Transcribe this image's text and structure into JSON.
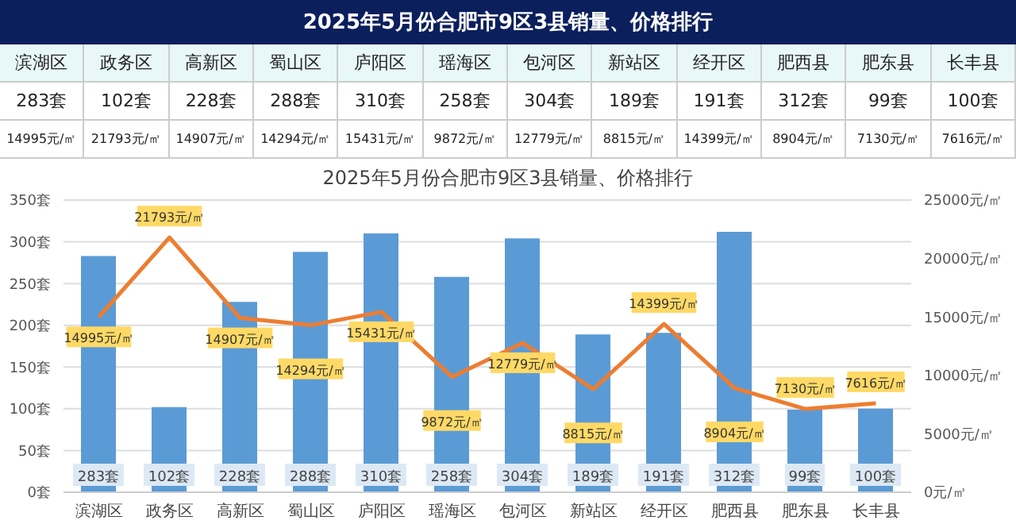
{
  "chart_data": {
    "type": "bar",
    "title": "2025年5月份合肥市9区3县销量、价格排行",
    "subtitle": "2025年5月份合肥市9区3县销量、价格排行",
    "categories": [
      "滨湖区",
      "政务区",
      "高新区",
      "蜀山区",
      "庐阳区",
      "瑶海区",
      "包河区",
      "新站区",
      "经开区",
      "肥西县",
      "肥东县",
      "长丰县"
    ],
    "series": [
      {
        "color": "#5b9bd5",
        "values": [
          283,
          102,
          228,
          288,
          310,
          258,
          304,
          189,
          191,
          312,
          99,
          100
        ],
        "value_labels": [
          "283套",
          "102套",
          "228套",
          "288套",
          "310套",
          "258套",
          "304套",
          "189套",
          "191套",
          "312套",
          "99套",
          "100套"
        ]
      },
      {
        "type": "line",
        "axis": "y2",
        "color": "#ed7d31",
        "values": [
          14995,
          21793,
          14907,
          14294,
          15431,
          9872,
          12779,
          8815,
          14399,
          8904,
          7130,
          7616
        ],
        "value_labels": [
          "14995元/㎡",
          "21793元/㎡",
          "14907元/㎡",
          "14294元/㎡",
          "15431元/㎡",
          "9872元/㎡",
          "12779元/㎡",
          "8815元/㎡",
          "14399元/㎡",
          "8904元/㎡",
          "7130元/㎡",
          "7616元/㎡"
        ]
      }
    ],
    "ylim": [
      0,
      350
    ],
    "yticks": [
      {
        "value": 0,
        "label": "0套"
      },
      {
        "value": 50,
        "label": "50套"
      },
      {
        "value": 100,
        "label": "100套"
      },
      {
        "value": 150,
        "label": "150套"
      },
      {
        "value": 200,
        "label": "200套"
      },
      {
        "value": 250,
        "label": "250套"
      },
      {
        "value": 300,
        "label": "300套"
      },
      {
        "value": 350,
        "label": "350套"
      }
    ],
    "y2lim": [
      0,
      25000
    ],
    "y2ticks": [
      {
        "value": 0,
        "label": "0元/㎡"
      },
      {
        "value": 5000,
        "label": "5000元/㎡"
      },
      {
        "value": 10000,
        "label": "10000元/㎡"
      },
      {
        "value": 15000,
        "label": "15000元/㎡"
      },
      {
        "value": 20000,
        "label": "20000元/㎡"
      },
      {
        "value": 25000,
        "label": "25000元/㎡"
      }
    ],
    "grid": "y",
    "line_style": "solid"
  }
}
